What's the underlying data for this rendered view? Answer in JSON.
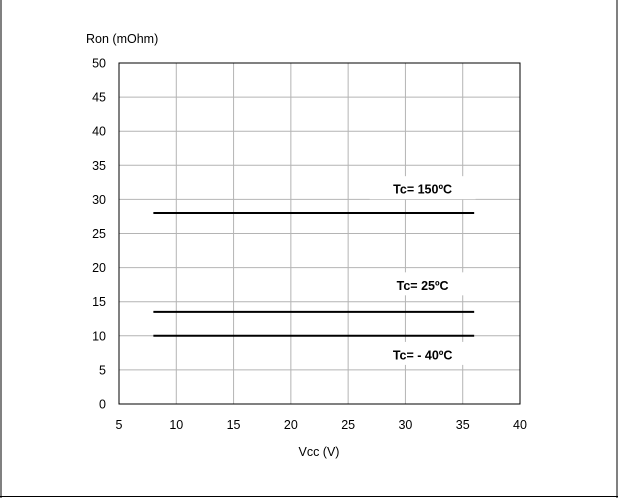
{
  "chart_data": {
    "type": "line",
    "title": "",
    "ylabel": "Ron (mOhm)",
    "xlabel": "Vcc (V)",
    "xlim": [
      5,
      40
    ],
    "ylim": [
      0,
      50
    ],
    "x_ticks": [
      5,
      10,
      15,
      20,
      25,
      30,
      35,
      40
    ],
    "y_ticks": [
      0,
      5,
      10,
      15,
      20,
      25,
      30,
      35,
      40,
      45,
      50
    ],
    "grid": true,
    "series": [
      {
        "name": "Tc= 150ºC",
        "x": [
          8,
          36
        ],
        "y": [
          28,
          28
        ],
        "color": "#000000"
      },
      {
        "name": "Tc= 25ºC",
        "x": [
          8,
          36
        ],
        "y": [
          13.5,
          13.5
        ],
        "color": "#000000"
      },
      {
        "name": "Tc= - 40ºC",
        "x": [
          8,
          36
        ],
        "y": [
          10,
          10
        ],
        "color": "#000000"
      }
    ],
    "annotations": [
      {
        "text": "Tc= 150ºC",
        "x": 31.5,
        "y": 31.5
      },
      {
        "text": "Tc= 25ºC",
        "x": 31.5,
        "y": 17.4
      },
      {
        "text": "Tc= - 40ºC",
        "x": 31.5,
        "y": 7.2
      }
    ]
  }
}
